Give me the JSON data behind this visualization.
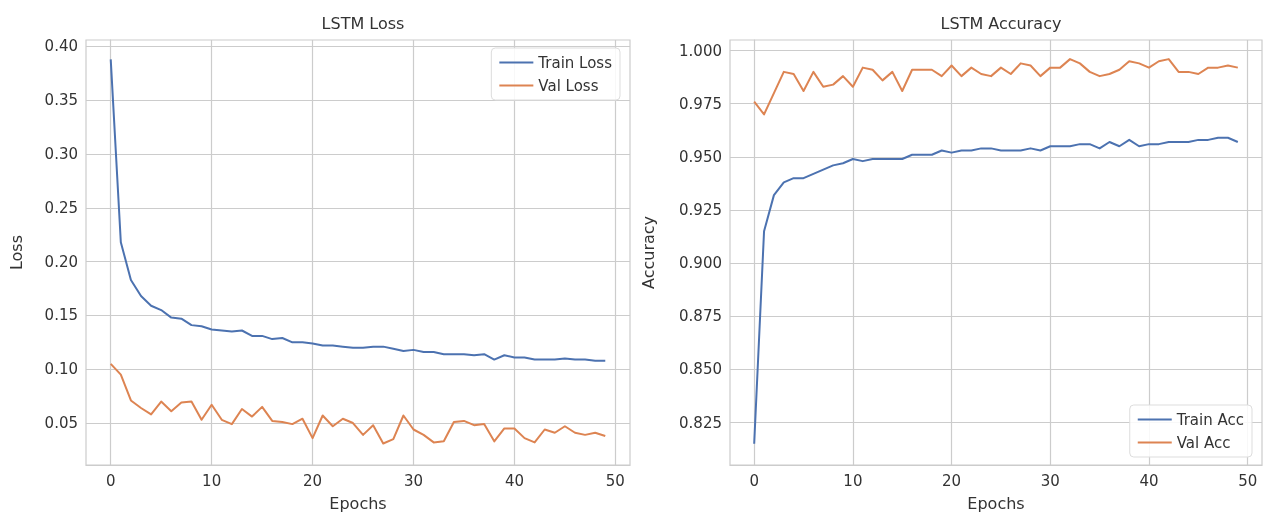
{
  "chart_data": [
    {
      "type": "line",
      "title": "LSTM Loss",
      "xlabel": "Epochs",
      "ylabel": "Loss",
      "legend": "top right",
      "grid": true,
      "x": [
        0,
        1,
        2,
        3,
        4,
        5,
        6,
        7,
        8,
        9,
        10,
        11,
        12,
        13,
        14,
        15,
        16,
        17,
        18,
        19,
        20,
        21,
        22,
        23,
        24,
        25,
        26,
        27,
        28,
        29,
        30,
        31,
        32,
        33,
        34,
        35,
        36,
        37,
        38,
        39,
        40,
        41,
        42,
        43,
        44,
        45,
        46,
        47,
        48,
        49
      ],
      "xlim": [
        -2.45,
        51.45
      ],
      "xticks": [
        0,
        10,
        20,
        30,
        40,
        50
      ],
      "ylim": [
        0.011,
        0.406
      ],
      "yticks": [
        {
          "value": 0.05,
          "label": "0.05"
        },
        {
          "value": 0.1,
          "label": "0.10"
        },
        {
          "value": 0.15,
          "label": "0.15"
        },
        {
          "value": 0.2,
          "label": "0.20"
        },
        {
          "value": 0.25,
          "label": "0.25"
        },
        {
          "value": 0.3,
          "label": "0.30"
        },
        {
          "value": 0.35,
          "label": "0.35"
        },
        {
          "value": 0.4,
          "label": "0.40"
        }
      ],
      "series": [
        {
          "name": "Train Loss",
          "color": "#4c72b0",
          "values": [
            0.388,
            0.218,
            0.183,
            0.168,
            0.159,
            0.155,
            0.148,
            0.147,
            0.141,
            0.14,
            0.137,
            0.136,
            0.135,
            0.136,
            0.131,
            0.131,
            0.128,
            0.129,
            0.125,
            0.125,
            0.124,
            0.122,
            0.122,
            0.121,
            0.12,
            0.12,
            0.121,
            0.121,
            0.119,
            0.117,
            0.118,
            0.116,
            0.116,
            0.114,
            0.114,
            0.114,
            0.113,
            0.114,
            0.109,
            0.113,
            0.111,
            0.111,
            0.109,
            0.109,
            0.109,
            0.11,
            0.109,
            0.109,
            0.108,
            0.108
          ]
        },
        {
          "name": "Val Loss",
          "color": "#dd8452",
          "values": [
            0.105,
            0.095,
            0.071,
            0.064,
            0.058,
            0.07,
            0.061,
            0.069,
            0.07,
            0.053,
            0.067,
            0.053,
            0.049,
            0.063,
            0.056,
            0.065,
            0.052,
            0.051,
            0.049,
            0.054,
            0.036,
            0.057,
            0.047,
            0.054,
            0.05,
            0.039,
            0.048,
            0.031,
            0.035,
            0.057,
            0.044,
            0.039,
            0.032,
            0.033,
            0.051,
            0.052,
            0.048,
            0.049,
            0.033,
            0.045,
            0.045,
            0.036,
            0.032,
            0.044,
            0.041,
            0.047,
            0.041,
            0.039,
            0.041,
            0.038
          ]
        }
      ]
    },
    {
      "type": "line",
      "title": "LSTM Accuracy",
      "xlabel": "Epochs",
      "ylabel": "Accuracy",
      "legend": "bottom right",
      "grid": true,
      "x": [
        0,
        1,
        2,
        3,
        4,
        5,
        6,
        7,
        8,
        9,
        10,
        11,
        12,
        13,
        14,
        15,
        16,
        17,
        18,
        19,
        20,
        21,
        22,
        23,
        24,
        25,
        26,
        27,
        28,
        29,
        30,
        31,
        32,
        33,
        34,
        35,
        36,
        37,
        38,
        39,
        40,
        41,
        42,
        43,
        44,
        45,
        46,
        47,
        48,
        49
      ],
      "xlim": [
        -2.45,
        51.45
      ],
      "xticks": [
        0,
        10,
        20,
        30,
        40,
        50
      ],
      "ylim": [
        0.805,
        1.005
      ],
      "yticks": [
        {
          "value": 0.825,
          "label": "0.825"
        },
        {
          "value": 0.85,
          "label": "0.850"
        },
        {
          "value": 0.875,
          "label": "0.875"
        },
        {
          "value": 0.9,
          "label": "0.900"
        },
        {
          "value": 0.925,
          "label": "0.925"
        },
        {
          "value": 0.95,
          "label": "0.950"
        },
        {
          "value": 0.975,
          "label": "0.975"
        },
        {
          "value": 1.0,
          "label": "1.000"
        }
      ],
      "series": [
        {
          "name": "Train Acc",
          "color": "#4c72b0",
          "values": [
            0.815,
            0.915,
            0.932,
            0.938,
            0.94,
            0.94,
            0.942,
            0.944,
            0.946,
            0.947,
            0.949,
            0.948,
            0.949,
            0.949,
            0.949,
            0.949,
            0.951,
            0.951,
            0.951,
            0.953,
            0.952,
            0.953,
            0.953,
            0.954,
            0.954,
            0.953,
            0.953,
            0.953,
            0.954,
            0.953,
            0.955,
            0.955,
            0.955,
            0.956,
            0.956,
            0.954,
            0.957,
            0.955,
            0.958,
            0.955,
            0.956,
            0.956,
            0.957,
            0.957,
            0.957,
            0.958,
            0.958,
            0.959,
            0.959,
            0.957
          ]
        },
        {
          "name": "Val Acc",
          "color": "#dd8452",
          "values": [
            0.976,
            0.97,
            0.98,
            0.99,
            0.989,
            0.981,
            0.99,
            0.983,
            0.984,
            0.988,
            0.983,
            0.992,
            0.991,
            0.986,
            0.99,
            0.981,
            0.991,
            0.991,
            0.991,
            0.988,
            0.993,
            0.988,
            0.992,
            0.989,
            0.988,
            0.992,
            0.989,
            0.994,
            0.993,
            0.988,
            0.992,
            0.992,
            0.996,
            0.994,
            0.99,
            0.988,
            0.989,
            0.991,
            0.995,
            0.994,
            0.992,
            0.995,
            0.996,
            0.99,
            0.99,
            0.989,
            0.992,
            0.992,
            0.993,
            0.992
          ]
        }
      ]
    }
  ]
}
